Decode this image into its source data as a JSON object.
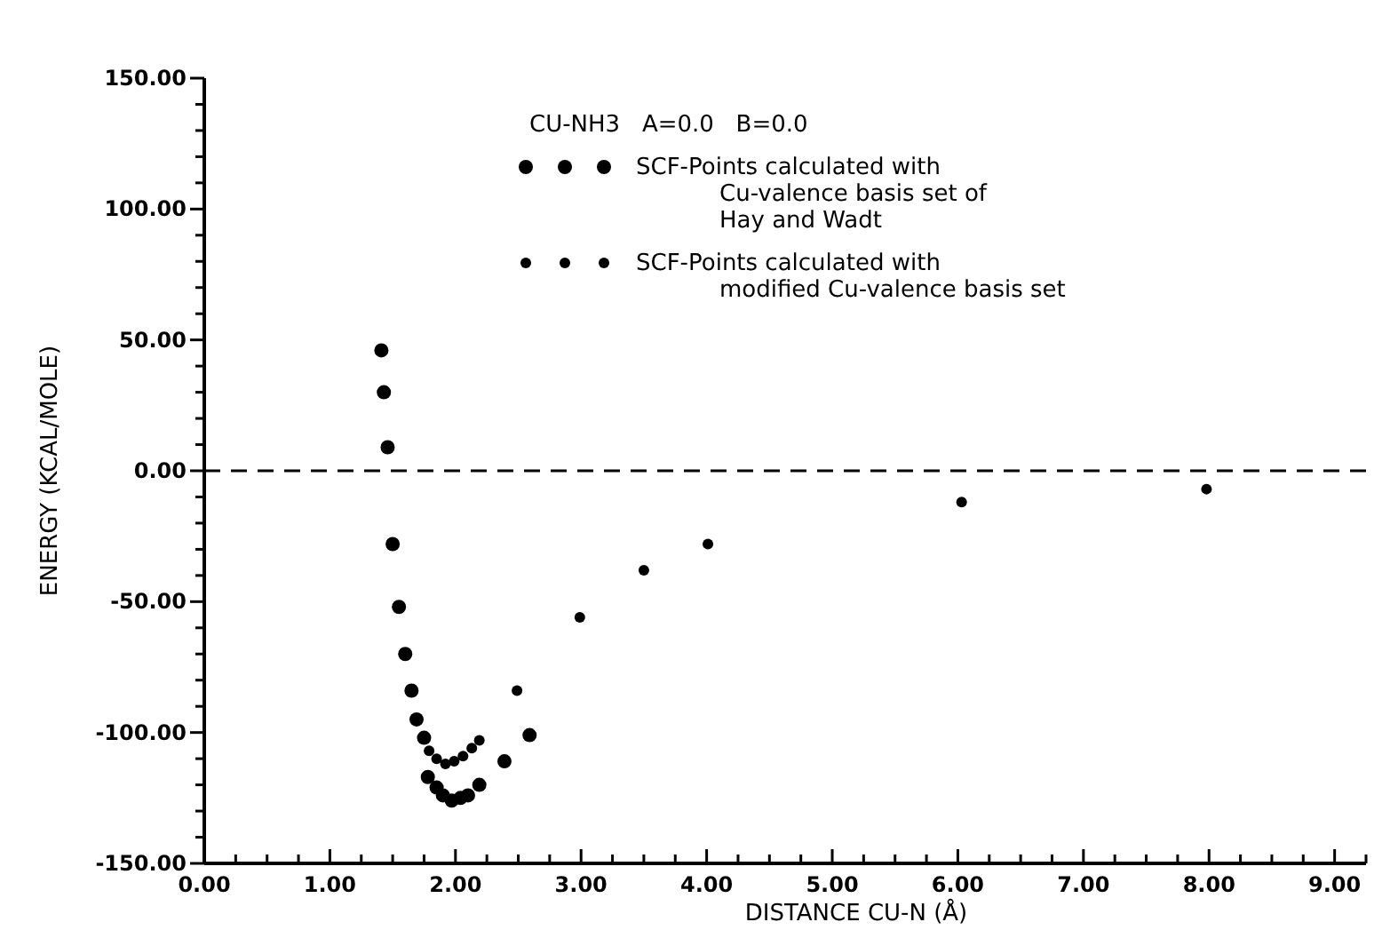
{
  "chart_data": {
    "type": "scatter",
    "title": "CU-NH3   A=0.0   B=0.0",
    "xlabel": "DISTANCE CU-N (Å)",
    "ylabel": "ENERGY (KCAL/MOLE)",
    "xlim": [
      0,
      9.25
    ],
    "ylim": [
      -150,
      150
    ],
    "xticks": [
      {
        "value": 0,
        "label": "0.00"
      },
      {
        "value": 1,
        "label": "1.00"
      },
      {
        "value": 2,
        "label": "2.00"
      },
      {
        "value": 3,
        "label": "3.00"
      },
      {
        "value": 4,
        "label": "4.00"
      },
      {
        "value": 5,
        "label": "5.00"
      },
      {
        "value": 6,
        "label": "6.00"
      },
      {
        "value": 7,
        "label": "7.00"
      },
      {
        "value": 8,
        "label": "8.00"
      },
      {
        "value": 9,
        "label": "9.00"
      },
      {
        "value": 0.25,
        "label": null
      },
      {
        "value": 0.5,
        "label": null
      },
      {
        "value": 0.75,
        "label": null
      },
      {
        "value": 1.25,
        "label": null
      },
      {
        "value": 1.5,
        "label": null
      },
      {
        "value": 1.75,
        "label": null
      },
      {
        "value": 2.25,
        "label": null
      },
      {
        "value": 2.5,
        "label": null
      },
      {
        "value": 2.75,
        "label": null
      },
      {
        "value": 3.25,
        "label": null
      },
      {
        "value": 3.5,
        "label": null
      },
      {
        "value": 3.75,
        "label": null
      },
      {
        "value": 4.25,
        "label": null
      },
      {
        "value": 4.5,
        "label": null
      },
      {
        "value": 4.75,
        "label": null
      },
      {
        "value": 5.25,
        "label": null
      },
      {
        "value": 5.5,
        "label": null
      },
      {
        "value": 5.75,
        "label": null
      },
      {
        "value": 6.25,
        "label": null
      },
      {
        "value": 6.5,
        "label": null
      },
      {
        "value": 6.75,
        "label": null
      },
      {
        "value": 7.25,
        "label": null
      },
      {
        "value": 7.5,
        "label": null
      },
      {
        "value": 7.75,
        "label": null
      },
      {
        "value": 8.25,
        "label": null
      },
      {
        "value": 8.5,
        "label": null
      },
      {
        "value": 8.75,
        "label": null
      },
      {
        "value": 9.25,
        "label": null
      }
    ],
    "yticks": [
      {
        "value": -150,
        "label": "-150.00"
      },
      {
        "value": -100,
        "label": "-100.00"
      },
      {
        "value": -50,
        "label": "-50.00"
      },
      {
        "value": 0,
        "label": "0.00"
      },
      {
        "value": 50,
        "label": "50.00"
      },
      {
        "value": 100,
        "label": "100.00"
      },
      {
        "value": 150,
        "label": "150.00"
      },
      {
        "value": -140,
        "label": null
      },
      {
        "value": -130,
        "label": null
      },
      {
        "value": -120,
        "label": null
      },
      {
        "value": -110,
        "label": null
      },
      {
        "value": -90,
        "label": null
      },
      {
        "value": -80,
        "label": null
      },
      {
        "value": -70,
        "label": null
      },
      {
        "value": -60,
        "label": null
      },
      {
        "value": -40,
        "label": null
      },
      {
        "value": -30,
        "label": null
      },
      {
        "value": -20,
        "label": null
      },
      {
        "value": -10,
        "label": null
      },
      {
        "value": 10,
        "label": null
      },
      {
        "value": 20,
        "label": null
      },
      {
        "value": 30,
        "label": null
      },
      {
        "value": 40,
        "label": null
      },
      {
        "value": 60,
        "label": null
      },
      {
        "value": 70,
        "label": null
      },
      {
        "value": 80,
        "label": null
      },
      {
        "value": 90,
        "label": null
      },
      {
        "value": 110,
        "label": null
      },
      {
        "value": 120,
        "label": null
      },
      {
        "value": 130,
        "label": null
      },
      {
        "value": 140,
        "label": null
      }
    ],
    "grid": false,
    "legend": "top right",
    "marker": "circle",
    "ref_lines": [
      {
        "axis": "y",
        "value": 0,
        "label": null,
        "line_style": "dashed",
        "color": "#000000"
      }
    ],
    "series": [
      {
        "name": "SCF-Points calculated with\nCu-valence basis set of\nHay and Wadt",
        "color": "#000000",
        "x": [
          1.41,
          1.43,
          1.46,
          1.5,
          1.55,
          1.6,
          1.65,
          1.69,
          1.75,
          1.78,
          1.85,
          1.9,
          1.97,
          2.04,
          2.1,
          2.19,
          2.39,
          2.59
        ],
        "values": [
          46,
          30,
          9,
          -28,
          -52,
          -70,
          -84,
          -95,
          -102,
          -117,
          -121,
          -124,
          -126,
          -125,
          -124,
          -120,
          -111,
          -101
        ]
      },
      {
        "name": "SCF-Points calculated with\nmodified Cu-valence basis set",
        "color": "#000000",
        "x": [
          1.79,
          1.85,
          1.92,
          1.99,
          2.06,
          2.13,
          2.19,
          2.49,
          2.99,
          3.5,
          4.01,
          6.03,
          7.98
        ],
        "values": [
          -107,
          -110,
          -112,
          -111,
          -109,
          -106,
          -103,
          -84,
          -56,
          -38,
          -28,
          -12,
          -7
        ]
      }
    ]
  }
}
